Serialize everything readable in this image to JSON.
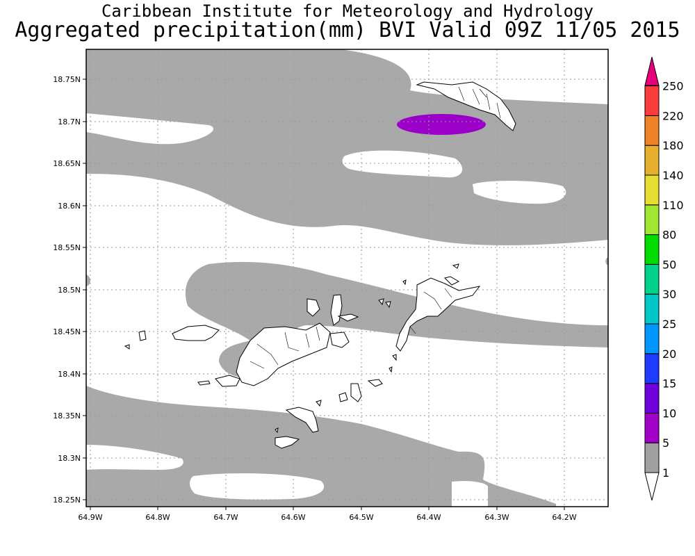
{
  "title": {
    "line1": "Caribbean Institute for Meteorology and Hydrology",
    "line2": "Aggregated precipitation(mm) BVI Valid 09Z 11/05 2015"
  },
  "axes": {
    "x_ticks": [
      "64.9W",
      "64.8W",
      "64.7W",
      "64.6W",
      "64.5W",
      "64.4W",
      "64.3W",
      "64.2W"
    ],
    "y_ticks": [
      "18.75N",
      "18.7N",
      "18.65N",
      "18.6N",
      "18.55N",
      "18.5N",
      "18.45N",
      "18.4N",
      "18.35N",
      "18.3N",
      "18.25N"
    ],
    "grid": "dotted"
  },
  "colorbar": {
    "labels": [
      "1",
      "5",
      "10",
      "15",
      "20",
      "25",
      "30",
      "50",
      "80",
      "110",
      "140",
      "180",
      "220",
      "250"
    ],
    "colors": [
      "#a0a0a0",
      "#a000c8",
      "#6e00dc",
      "#1e3cff",
      "#0096ff",
      "#00c8c8",
      "#00d28c",
      "#00dc00",
      "#a0e632",
      "#e6dc32",
      "#e6af2d",
      "#f08228",
      "#fa3c3c",
      "#f00082"
    ],
    "bottom_color": "#ffffff"
  },
  "legend_colors": {
    "gray": "#a9a9a9",
    "purple": "#9b00c8",
    "land": "#ffffff"
  }
}
